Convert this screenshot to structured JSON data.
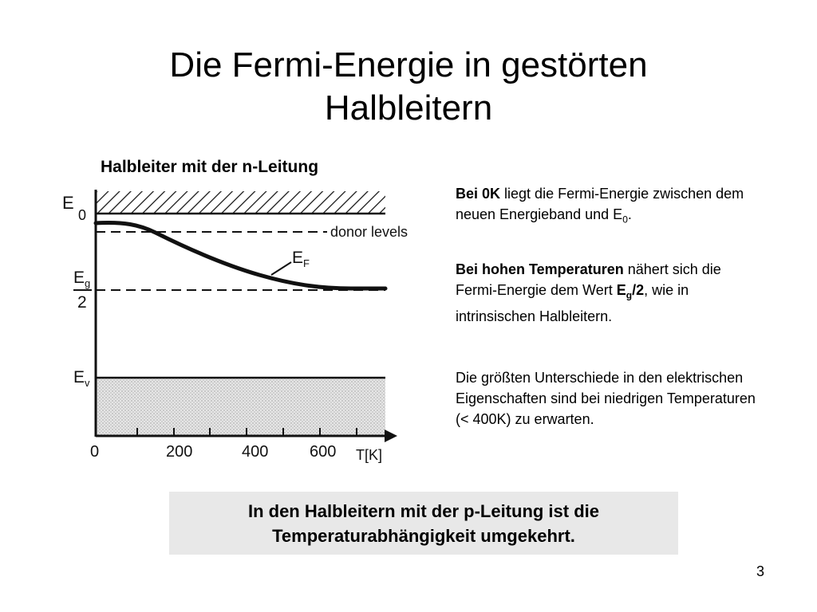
{
  "slide": {
    "title_line1": "Die Fermi-Energie in gestörten",
    "title_line2": "Halbleitern",
    "page_number": "3"
  },
  "figure": {
    "caption": "Halbleiter mit der n-Leitung",
    "label_E": "E",
    "label_zero": "0",
    "label_donor": "donor levels",
    "label_EF_main": "E",
    "label_EF_sub": "F",
    "label_Eg_main": "E",
    "label_Eg_sub": "g",
    "label_two": "2",
    "label_Ev_main": "E",
    "label_Ev_sub": "v",
    "x_tick_0": "0",
    "x_tick_200": "200",
    "x_tick_400": "400",
    "x_tick_600": "600",
    "x_axis_label": "T[K]"
  },
  "text": {
    "p1_bold": "Bei 0K",
    "p1_rest": " liegt die Fermi-Energie zwischen dem neuen Energieband und E",
    "p1_sub": "0",
    "p1_end": ".",
    "p2_bold": "Bei hohen Temperaturen",
    "p2_rest": " nähert sich die Fermi-Energie dem Wert ",
    "p2_E": "E",
    "p2_sub": "g",
    "p2_slash2": "/2",
    "p2_end": ", wie in intrinsischen Halbleitern.",
    "p3": "Die größten Unterschiede in den elektrischen Eigenschaften sind bei niedrigen Temperaturen (< 400K) zu erwarten."
  },
  "conclusion": {
    "line1": "In den Halbleitern mit der p-Leitung ist die",
    "line2": "Temperaturabhängigkeit umgekehrt."
  }
}
